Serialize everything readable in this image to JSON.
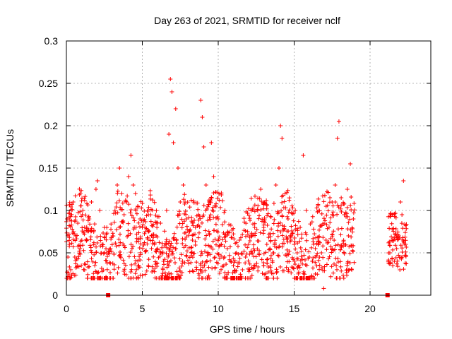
{
  "chart_data": {
    "type": "scatter",
    "title": "Day 263 of 2021, SRMTID for receiver nclf",
    "xlabel": "GPS time / hours",
    "ylabel": "SRMTID / TECUs",
    "xlim": [
      0,
      24
    ],
    "ylim": [
      0,
      0.3
    ],
    "x_ticks": [
      0,
      5,
      10,
      15,
      20
    ],
    "y_ticks": [
      0,
      0.05,
      0.1,
      0.15,
      0.2,
      0.25,
      0.3
    ],
    "x_tick_labels": [
      "0",
      "5",
      "10",
      "15",
      "20"
    ],
    "y_tick_labels": [
      "0",
      "0.05",
      "0.1",
      "0.15",
      "0.2",
      "0.25",
      "0.3"
    ],
    "grid": true,
    "marker": "plus",
    "color": "#ff0000",
    "zero_markers_x": [
      2.75,
      21.15
    ],
    "segments": [
      {
        "x_start": 0.0,
        "x_end": 19.0,
        "y_min": 0.02,
        "y_max": 0.13
      },
      {
        "x_start": 21.2,
        "x_end": 22.4,
        "y_min": 0.03,
        "y_max": 0.1
      }
    ],
    "points": [
      [
        0.1,
        0.045
      ],
      [
        0.2,
        0.06
      ],
      [
        0.3,
        0.095
      ],
      [
        0.45,
        0.11
      ],
      [
        0.6,
        0.07
      ],
      [
        0.75,
        0.085
      ],
      [
        0.9,
        0.055
      ],
      [
        1.05,
        0.095
      ],
      [
        1.2,
        0.08
      ],
      [
        1.35,
        0.065
      ],
      [
        1.5,
        0.09
      ],
      [
        1.65,
        0.11
      ],
      [
        1.8,
        0.075
      ],
      [
        1.95,
        0.125
      ],
      [
        2.05,
        0.135
      ],
      [
        2.2,
        0.1
      ],
      [
        2.35,
        0.06
      ],
      [
        2.5,
        0.08
      ],
      [
        2.65,
        0.05
      ],
      [
        2.9,
        0.055
      ],
      [
        3.05,
        0.07
      ],
      [
        3.2,
        0.1
      ],
      [
        3.35,
        0.13
      ],
      [
        3.5,
        0.15
      ],
      [
        3.65,
        0.12
      ],
      [
        3.8,
        0.095
      ],
      [
        3.95,
        0.11
      ],
      [
        4.1,
        0.14
      ],
      [
        4.25,
        0.165
      ],
      [
        4.4,
        0.13
      ],
      [
        4.55,
        0.12
      ],
      [
        4.7,
        0.105
      ],
      [
        4.85,
        0.09
      ],
      [
        5.0,
        0.08
      ],
      [
        5.2,
        0.075
      ],
      [
        5.4,
        0.095
      ],
      [
        5.6,
        0.07
      ],
      [
        5.8,
        0.06
      ],
      [
        6.0,
        0.055
      ],
      [
        6.2,
        0.085
      ],
      [
        6.4,
        0.04
      ],
      [
        6.6,
        0.1
      ],
      [
        6.75,
        0.19
      ],
      [
        6.85,
        0.255
      ],
      [
        6.95,
        0.24
      ],
      [
        7.05,
        0.18
      ],
      [
        7.2,
        0.22
      ],
      [
        7.35,
        0.15
      ],
      [
        7.5,
        0.11
      ],
      [
        7.7,
        0.13
      ],
      [
        7.9,
        0.09
      ],
      [
        8.1,
        0.075
      ],
      [
        8.3,
        0.065
      ],
      [
        8.5,
        0.08
      ],
      [
        8.7,
        0.095
      ],
      [
        8.85,
        0.23
      ],
      [
        8.95,
        0.21
      ],
      [
        9.05,
        0.175
      ],
      [
        9.2,
        0.13
      ],
      [
        9.4,
        0.11
      ],
      [
        9.55,
        0.18
      ],
      [
        9.7,
        0.14
      ],
      [
        9.85,
        0.105
      ],
      [
        10.0,
        0.09
      ],
      [
        10.2,
        0.06
      ],
      [
        10.4,
        0.045
      ],
      [
        10.6,
        0.055
      ],
      [
        10.8,
        0.04
      ],
      [
        11.0,
        0.035
      ],
      [
        11.2,
        0.05
      ],
      [
        11.4,
        0.065
      ],
      [
        11.6,
        0.03
      ],
      [
        11.8,
        0.045
      ],
      [
        12.0,
        0.06
      ],
      [
        12.2,
        0.07
      ],
      [
        12.4,
        0.08
      ],
      [
        12.6,
        0.1
      ],
      [
        12.8,
        0.125
      ],
      [
        13.0,
        0.08
      ],
      [
        13.2,
        0.06
      ],
      [
        13.4,
        0.055
      ],
      [
        13.6,
        0.05
      ],
      [
        13.8,
        0.13
      ],
      [
        14.0,
        0.15
      ],
      [
        14.1,
        0.2
      ],
      [
        14.2,
        0.185
      ],
      [
        14.4,
        0.12
      ],
      [
        14.6,
        0.09
      ],
      [
        14.8,
        0.07
      ],
      [
        15.0,
        0.06
      ],
      [
        15.2,
        0.05
      ],
      [
        15.4,
        0.08
      ],
      [
        15.6,
        0.165
      ],
      [
        15.8,
        0.1
      ],
      [
        16.0,
        0.045
      ],
      [
        16.2,
        0.04
      ],
      [
        16.4,
        0.055
      ],
      [
        16.6,
        0.06
      ],
      [
        16.8,
        0.05
      ],
      [
        16.95,
        0.008
      ],
      [
        17.1,
        0.065
      ],
      [
        17.3,
        0.08
      ],
      [
        17.5,
        0.11
      ],
      [
        17.7,
        0.13
      ],
      [
        17.85,
        0.185
      ],
      [
        17.95,
        0.205
      ],
      [
        18.1,
        0.115
      ],
      [
        18.3,
        0.095
      ],
      [
        18.5,
        0.125
      ],
      [
        18.7,
        0.155
      ],
      [
        18.9,
        0.09
      ],
      [
        21.3,
        0.05
      ],
      [
        21.45,
        0.065
      ],
      [
        21.6,
        0.04
      ],
      [
        21.75,
        0.055
      ],
      [
        21.9,
        0.07
      ],
      [
        22.0,
        0.11
      ],
      [
        22.1,
        0.095
      ],
      [
        22.2,
        0.135
      ],
      [
        22.35,
        0.06
      ]
    ]
  }
}
